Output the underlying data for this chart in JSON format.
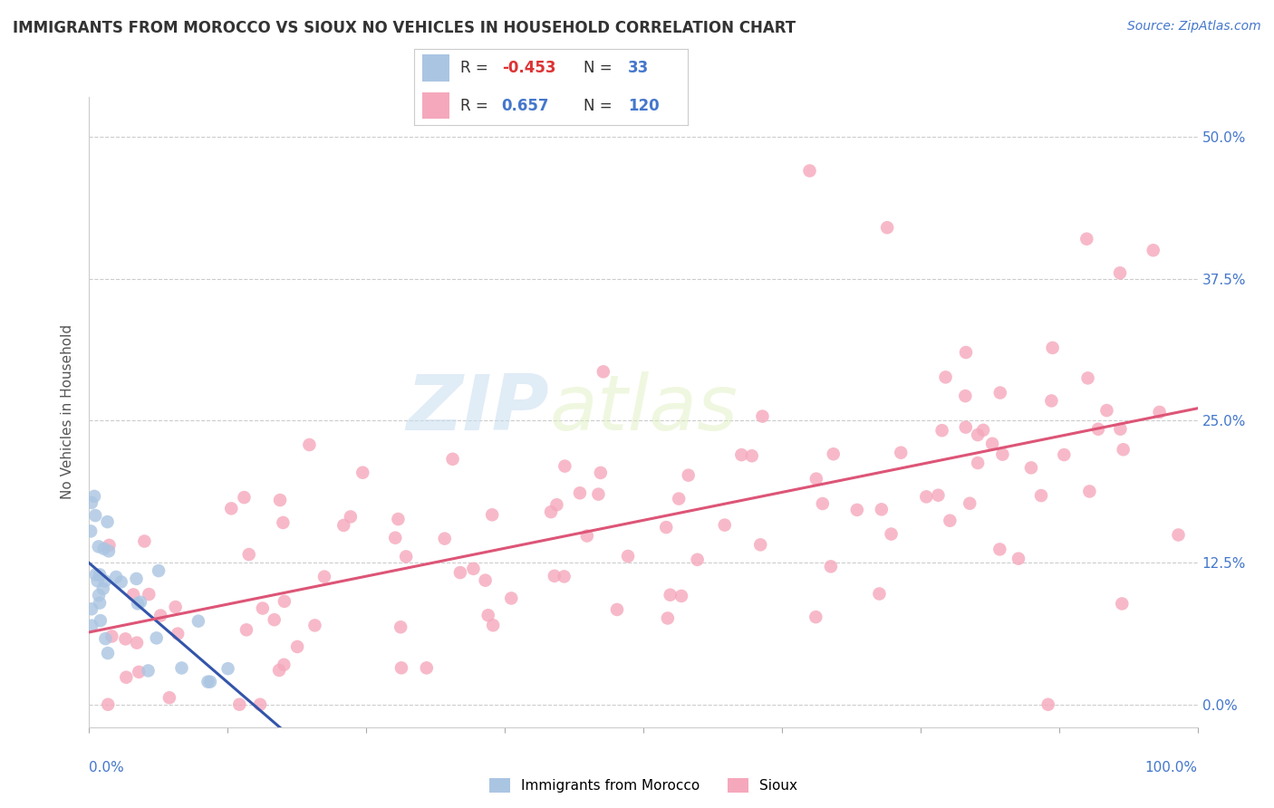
{
  "title": "IMMIGRANTS FROM MOROCCO VS SIOUX NO VEHICLES IN HOUSEHOLD CORRELATION CHART",
  "source": "Source: ZipAtlas.com",
  "ylabel": "No Vehicles in Household",
  "ytick_labels": [
    "0.0%",
    "12.5%",
    "25.0%",
    "37.5%",
    "50.0%"
  ],
  "ytick_values": [
    0.0,
    0.125,
    0.25,
    0.375,
    0.5
  ],
  "xlim": [
    0.0,
    1.0
  ],
  "ylim": [
    -0.02,
    0.535
  ],
  "background_color": "#ffffff",
  "watermark_zip": "ZIP",
  "watermark_atlas": "atlas",
  "color_morocco": "#aac5e2",
  "color_sioux": "#f5a8bc",
  "line_color_morocco": "#3355aa",
  "line_color_sioux": "#dd5577",
  "scatter_alpha": 0.8,
  "scatter_size": 110,
  "title_fontsize": 12,
  "source_fontsize": 10,
  "ytick_color": "#4477cc",
  "ylabel_color": "#555555",
  "ylabel_fontsize": 11
}
